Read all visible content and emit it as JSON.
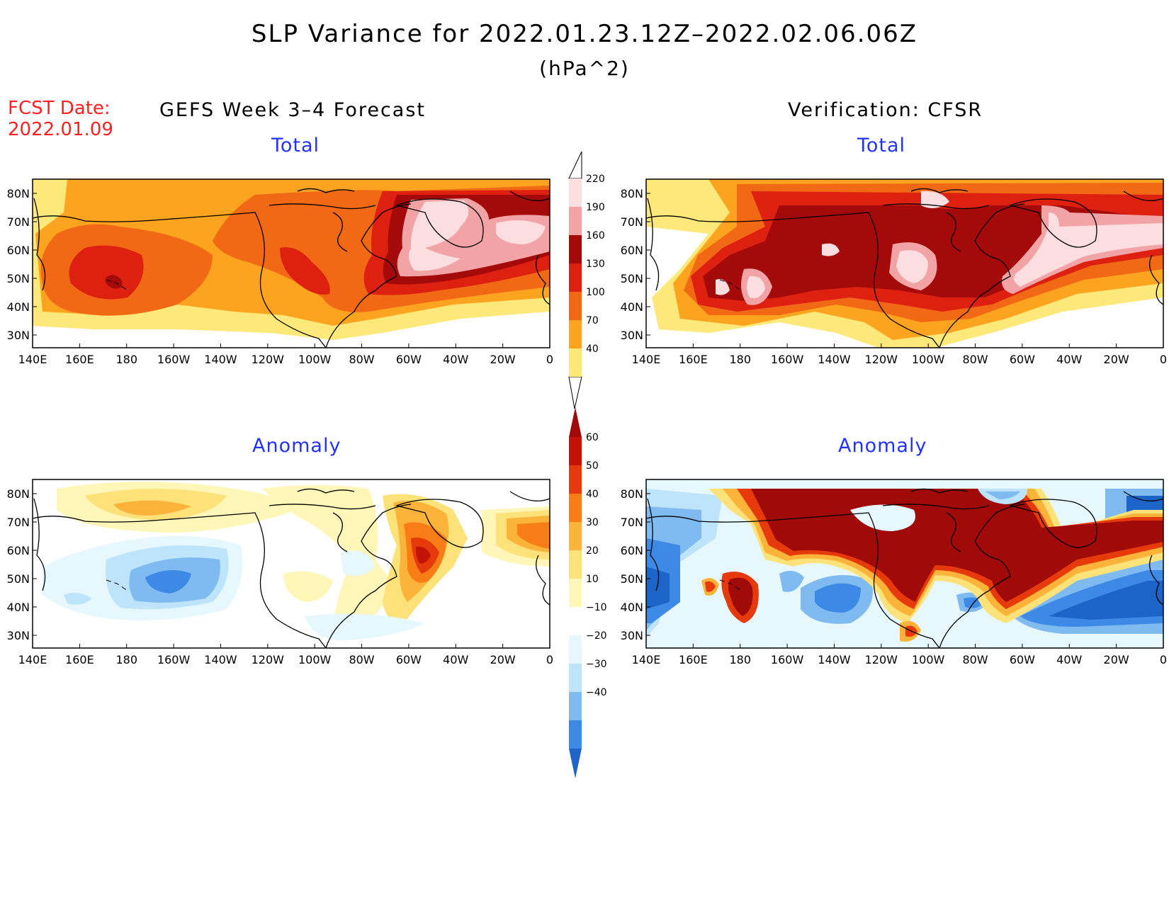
{
  "title": "SLP Variance for 2022.01.23.12Z–2022.02.06.06Z",
  "units": "(hPa^2)",
  "fcst_label": "FCST Date:",
  "fcst_date": "2022.01.09",
  "left_header": "GEFS Week 3–4 Forecast",
  "right_header": "Verification: CFSR",
  "total_label": "Total",
  "anomaly_label": "Anomaly",
  "lat_labels": [
    "80N",
    "70N",
    "60N",
    "50N",
    "40N",
    "30N"
  ],
  "lon_labels": [
    "140E",
    "160E",
    "180",
    "160W",
    "140W",
    "120W",
    "100W",
    "80W",
    "60W",
    "40W",
    "20W",
    "0"
  ],
  "colors": {
    "total": [
      "#fde87a",
      "#fca31f",
      "#f16915",
      "#dd2010",
      "#a40a0a",
      "#f2a3a6",
      "#fcdde0"
    ],
    "anomaly_neg": [
      "#1d64c8",
      "#3c8ae6",
      "#7fbaf0",
      "#bde4fa",
      "#e6f8fe"
    ],
    "anomaly_pos": [
      "#fff6b8",
      "#fde27a",
      "#fbb33a",
      "#f97d16",
      "#e63a0c",
      "#c21306",
      "#a00a08"
    ]
  },
  "chart_data": {
    "type": "heatmap",
    "variable": "SLP Variance",
    "units": "hPa^2",
    "lon_range": [
      "140E",
      "0"
    ],
    "lat_range": [
      "25N",
      "85N"
    ],
    "total_colorbar": {
      "levels": [
        40,
        70,
        100,
        130,
        160,
        190,
        220
      ]
    },
    "anomaly_colorbar": {
      "levels": [
        -40,
        -30,
        -20,
        -10,
        10,
        20,
        30,
        40,
        50,
        60
      ]
    },
    "panels": [
      {
        "name": "GEFS Week 3–4 Forecast",
        "field": "Total"
      },
      {
        "name": "Verification: CFSR",
        "field": "Total"
      },
      {
        "name": "GEFS Week 3–4 Forecast",
        "field": "Anomaly"
      },
      {
        "name": "Verification: CFSR",
        "field": "Anomaly"
      }
    ]
  }
}
